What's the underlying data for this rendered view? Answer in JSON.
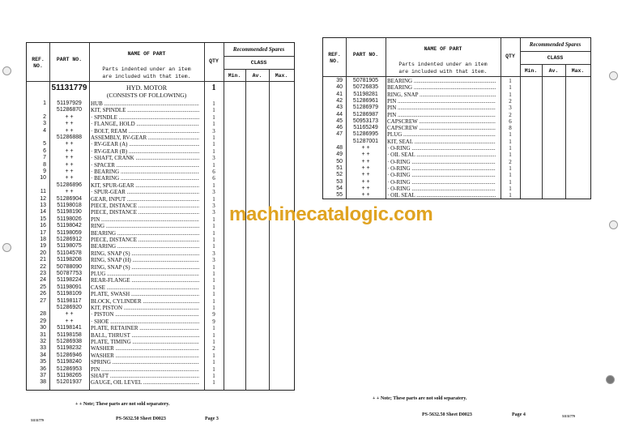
{
  "headers": {
    "ref": "REF. NO.",
    "part_no": "PART NO.",
    "name_of_part": "NAME OF PART",
    "indent_note_1": "Parts indented under an item",
    "indent_note_2": "are included with that item.",
    "qty": "QTY",
    "recommended_spares": "Recommended Spares",
    "class": "CLASS",
    "min": "Min.",
    "av": "Av.",
    "max": "Max."
  },
  "assembly": {
    "part_no": "51131779",
    "name": "HYD. MOTOR",
    "subtitle": "(CONSISTS OF FOLLOWING)",
    "qty": "1"
  },
  "left_rows": [
    [
      "1",
      "51197929",
      "HUB",
      "1"
    ],
    [
      "",
      "51286870",
      "KIT, SPINDLE",
      "1"
    ],
    [
      "2",
      "+ +",
      "· SPINDLE",
      "1"
    ],
    [
      "3",
      "+ +",
      "· FLANGE, HOLD",
      "1"
    ],
    [
      "4",
      "+ +",
      "· BOLT, REAM",
      "3"
    ],
    [
      "",
      "51286888",
      "ASSEMBLY, RV-GEAR",
      "1"
    ],
    [
      "5",
      "+ +",
      "· RV-GEAR (A)",
      "1"
    ],
    [
      "6",
      "+ +",
      "· RV-GEAR (B)",
      "1"
    ],
    [
      "7",
      "+ +",
      "· SHAFT, CRANK",
      "3"
    ],
    [
      "8",
      "+ +",
      "· SPACER",
      "1"
    ],
    [
      "9",
      "+ +",
      "· BEARING",
      "6"
    ],
    [
      "10",
      "+ +",
      "· BEARING",
      "6"
    ],
    [
      "",
      "51286896",
      "KIT, SPUR-GEAR",
      "1"
    ],
    [
      "11",
      "+ +",
      "· SPUR-GEAR",
      "3"
    ],
    [
      "12",
      "51286904",
      "GEAR, INPUT",
      "1"
    ],
    [
      "13",
      "51198018",
      "PIECE, DISTANCE",
      "3"
    ],
    [
      "14",
      "51198190",
      "PIECE, DISTANCE",
      "3"
    ],
    [
      "15",
      "51198026",
      "PIN",
      "1"
    ],
    [
      "16",
      "51198042",
      "RING",
      "1"
    ],
    [
      "17",
      "51198059",
      "BEARING",
      "1"
    ],
    [
      "18",
      "51286912",
      "PIECE, DISTANCE",
      "1"
    ],
    [
      "19",
      "51198075",
      "BEARING",
      "1"
    ],
    [
      "20",
      "51104578",
      "RING, SNAP  (S)",
      "3"
    ],
    [
      "21",
      "51198208",
      "RING, SNAP  (H)",
      "3"
    ],
    [
      "22",
      "50788090",
      "RING, SNAP  (S)",
      "1"
    ],
    [
      "23",
      "50787753",
      "PLUG",
      "1"
    ],
    [
      "24",
      "51198224",
      "REAR-FLANGE",
      "1"
    ],
    [
      "25",
      "51198091",
      "CASE",
      "1"
    ],
    [
      "26",
      "51198109",
      "PLATE, SWASH",
      "1"
    ],
    [
      "27",
      "51198117",
      "BLOCK, CYLINDER",
      "1"
    ],
    [
      "",
      "51286920",
      "KIT, PISTON",
      "1"
    ],
    [
      "28",
      "+ +",
      "· PISTON",
      "9"
    ],
    [
      "29",
      "+ +",
      "· SHOE",
      "9"
    ],
    [
      "30",
      "51198141",
      "PLATE, RETAINER",
      "1"
    ],
    [
      "31",
      "51198158",
      "BALL, THRUST",
      "1"
    ],
    [
      "32",
      "51286938",
      "PLATE, TIMING",
      "1"
    ],
    [
      "33",
      "51198232",
      "WASHER",
      "2"
    ],
    [
      "34",
      "51286946",
      "WASHER",
      "1"
    ],
    [
      "35",
      "51198240",
      "SPRING",
      "1"
    ],
    [
      "36",
      "51286953",
      "PIN",
      "1"
    ],
    [
      "37",
      "51198265",
      "SHAFT",
      "1"
    ],
    [
      "38",
      "51201937",
      "GAUGE, OIL LEVEL",
      "1"
    ]
  ],
  "right_rows": [
    [
      "39",
      "50781905",
      "BEARING",
      "1"
    ],
    [
      "40",
      "50726835",
      "BEARING",
      "1"
    ],
    [
      "41",
      "51198281",
      "RING, SNAP",
      "1"
    ],
    [
      "42",
      "51286961",
      "PIN",
      "2"
    ],
    [
      "43",
      "51286979",
      "PIN",
      "3"
    ],
    [
      "44",
      "51286987",
      "PIN",
      "2"
    ],
    [
      "45",
      "50953173",
      "CAPSCREW",
      "6"
    ],
    [
      "46",
      "51165249",
      "CAPSCREW",
      "8"
    ],
    [
      "47",
      "51286995",
      "PLUG",
      "1"
    ],
    [
      "",
      "51287001",
      "KIT, SEAL",
      "1"
    ],
    [
      "48",
      "+ +",
      "· O-RING",
      "1"
    ],
    [
      "49",
      "+ +",
      "· OIL SEAL",
      "1"
    ],
    [
      "50",
      "+ +",
      "· O-RING",
      "2"
    ],
    [
      "51",
      "+ +",
      "· O-RING",
      "1"
    ],
    [
      "52",
      "+ +",
      "· O-RING",
      "1"
    ],
    [
      "53",
      "+ +",
      "· O-RING",
      "1"
    ],
    [
      "54",
      "+ +",
      "· O-RING",
      "1"
    ],
    [
      "55",
      "+ +",
      "· OIL SEAL",
      "1"
    ]
  ],
  "footer_left": {
    "note": "+ + Note; These parts are not sold separatery.",
    "code": "51131779",
    "sheet": "PS-5632.50  Sheet D0023",
    "page": "Page 3"
  },
  "footer_right": {
    "note": "+ + Note; These parts are not sold separatery.",
    "code": "51131779",
    "sheet": "PS-5632.50  Sheet D0023",
    "page": "Page 4"
  },
  "watermark": "machinecatalogic.com"
}
